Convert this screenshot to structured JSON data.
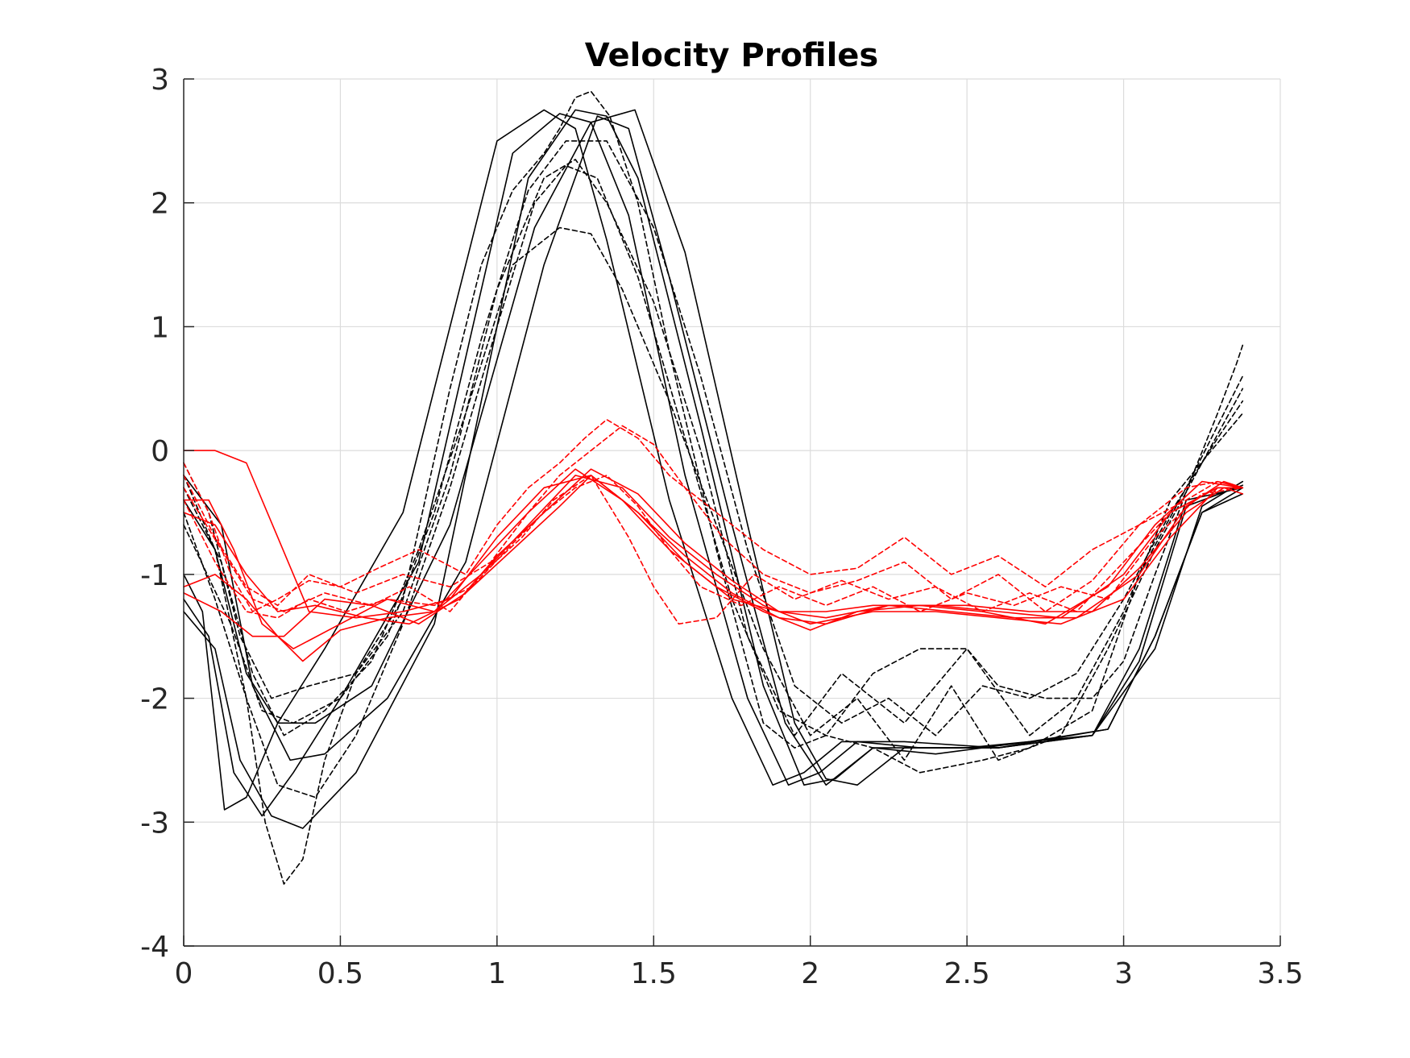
{
  "chart_data": {
    "type": "line",
    "title": "Velocity Profiles",
    "xlabel": "",
    "ylabel": "",
    "xlim": [
      0,
      3.5
    ],
    "ylim": [
      -4,
      3
    ],
    "xticks": [
      0,
      0.5,
      1,
      1.5,
      2,
      2.5,
      3,
      3.5
    ],
    "xtick_labels": [
      "0",
      "0.5",
      "1",
      "1.5",
      "2",
      "2.5",
      "3",
      "3.5"
    ],
    "yticks": [
      3,
      2,
      1,
      0,
      -1,
      -2,
      -3,
      -4
    ],
    "ytick_labels": [
      "3",
      "2",
      "1",
      "0",
      "-1",
      "-2",
      "-3",
      "-4"
    ],
    "grid": true,
    "legend": "none",
    "colors": {
      "black_series": "#000000",
      "red_series": "#ff0000",
      "grid": "#dcdcdc",
      "axis": "#262626"
    },
    "series": [
      {
        "color": "#000000",
        "style": "solid",
        "x": [
          0,
          0.06,
          0.13,
          0.2,
          0.3,
          0.45,
          0.7,
          1.0,
          1.15,
          1.25,
          1.35,
          1.55,
          1.75,
          1.88,
          1.98,
          2.1,
          2.3,
          2.6,
          2.9,
          3.05,
          3.2,
          3.38
        ],
        "y": [
          -1.0,
          -1.3,
          -2.9,
          -2.8,
          -2.2,
          -1.6,
          -0.5,
          2.5,
          2.75,
          2.6,
          1.7,
          -0.4,
          -2.0,
          -2.7,
          -2.6,
          -2.35,
          -2.35,
          -2.4,
          -2.3,
          -1.6,
          -0.4,
          -0.3
        ]
      },
      {
        "color": "#000000",
        "style": "solid",
        "x": [
          0,
          0.08,
          0.16,
          0.25,
          0.35,
          0.5,
          0.75,
          1.05,
          1.2,
          1.3,
          1.42,
          1.6,
          1.8,
          1.93,
          2.03,
          2.15,
          2.35,
          2.6,
          2.9,
          3.05,
          3.2,
          3.38
        ],
        "y": [
          -1.2,
          -1.5,
          -2.6,
          -2.95,
          -2.6,
          -2.0,
          -0.9,
          2.4,
          2.72,
          2.65,
          1.9,
          -0.2,
          -2.0,
          -2.7,
          -2.6,
          -2.35,
          -2.4,
          -2.4,
          -2.3,
          -1.7,
          -0.45,
          -0.28
        ]
      },
      {
        "color": "#000000",
        "style": "solid",
        "x": [
          0,
          0.1,
          0.18,
          0.28,
          0.38,
          0.55,
          0.8,
          1.1,
          1.25,
          1.35,
          1.45,
          1.65,
          1.85,
          1.98,
          2.08,
          2.2,
          2.4,
          2.7,
          2.95,
          3.1,
          3.25,
          3.38
        ],
        "y": [
          -1.3,
          -1.6,
          -2.5,
          -2.95,
          -3.05,
          -2.6,
          -1.4,
          2.2,
          2.75,
          2.7,
          2.2,
          0.2,
          -1.9,
          -2.7,
          -2.65,
          -2.4,
          -2.45,
          -2.35,
          -2.25,
          -1.5,
          -0.5,
          -0.3
        ]
      },
      {
        "color": "#000000",
        "style": "solid",
        "x": [
          0,
          0.1,
          0.2,
          0.3,
          0.42,
          0.6,
          0.85,
          1.12,
          1.3,
          1.44,
          1.6,
          1.8,
          1.95,
          2.05,
          2.15,
          2.3,
          2.6,
          2.95,
          3.1,
          3.25,
          3.38
        ],
        "y": [
          -0.4,
          -0.8,
          -1.8,
          -2.2,
          -2.2,
          -1.9,
          -0.6,
          1.8,
          2.65,
          2.75,
          1.6,
          -0.6,
          -2.2,
          -2.65,
          -2.7,
          -2.4,
          -2.4,
          -2.25,
          -1.5,
          -0.5,
          -0.35
        ]
      },
      {
        "color": "#000000",
        "style": "solid",
        "x": [
          0,
          0.12,
          0.22,
          0.34,
          0.45,
          0.65,
          0.9,
          1.15,
          1.32,
          1.42,
          1.55,
          1.75,
          1.92,
          2.05,
          2.2,
          2.5,
          2.9,
          3.1,
          3.25,
          3.38
        ],
        "y": [
          -0.2,
          -0.6,
          -1.9,
          -2.5,
          -2.45,
          -2.0,
          -0.9,
          1.5,
          2.7,
          2.6,
          1.4,
          -0.6,
          -2.2,
          -2.7,
          -2.4,
          -2.4,
          -2.3,
          -1.6,
          -0.45,
          -0.25
        ]
      },
      {
        "color": "#000000",
        "style": "dashed",
        "x": [
          0,
          0.1,
          0.2,
          0.26,
          0.32,
          0.38,
          0.45,
          0.55,
          0.7,
          0.85,
          0.95,
          1.05,
          1.15,
          1.2,
          1.25,
          1.3,
          1.36,
          1.45,
          1.55,
          1.7,
          1.85,
          1.95,
          2.05,
          2.2,
          2.35,
          2.5,
          2.6,
          2.75,
          2.9,
          3.0,
          3.1,
          3.22,
          3.3,
          3.36,
          3.38
        ],
        "y": [
          -0.2,
          -0.8,
          -2.0,
          -3.0,
          -3.5,
          -3.3,
          -2.5,
          -1.8,
          -1.2,
          0.5,
          1.5,
          2.1,
          2.4,
          2.6,
          2.85,
          2.9,
          2.7,
          2.0,
          0.8,
          -0.8,
          -2.2,
          -2.4,
          -2.3,
          -1.8,
          -1.6,
          -1.6,
          -1.9,
          -2.0,
          -2.0,
          -1.7,
          -1.0,
          -0.2,
          0.3,
          0.7,
          0.85
        ]
      },
      {
        "color": "#000000",
        "style": "dashed",
        "x": [
          0,
          0.08,
          0.18,
          0.28,
          0.4,
          0.55,
          0.7,
          0.85,
          1.0,
          1.15,
          1.25,
          1.35,
          1.5,
          1.65,
          1.8,
          1.95,
          2.1,
          2.3,
          2.5,
          2.7,
          2.85,
          3.0,
          3.15,
          3.28,
          3.38
        ],
        "y": [
          -0.1,
          -0.5,
          -1.5,
          -2.0,
          -1.9,
          -1.8,
          -1.3,
          -0.2,
          1.3,
          2.2,
          2.35,
          2.0,
          1.2,
          0.0,
          -1.5,
          -2.3,
          -1.8,
          -2.2,
          -1.6,
          -2.3,
          -2.0,
          -1.3,
          -0.4,
          0.0,
          0.3
        ]
      },
      {
        "color": "#000000",
        "style": "dashed",
        "x": [
          0,
          0.12,
          0.22,
          0.32,
          0.45,
          0.6,
          0.75,
          0.9,
          1.05,
          1.2,
          1.3,
          1.4,
          1.55,
          1.7,
          1.85,
          2.0,
          2.15,
          2.3,
          2.45,
          2.6,
          2.8,
          2.95,
          3.1,
          3.25,
          3.38
        ],
        "y": [
          -0.3,
          -0.9,
          -1.8,
          -2.3,
          -2.1,
          -1.7,
          -0.8,
          0.3,
          1.5,
          1.8,
          1.75,
          1.3,
          0.4,
          -0.6,
          -1.6,
          -2.3,
          -2.0,
          -2.5,
          -1.9,
          -2.5,
          -2.3,
          -1.6,
          -0.8,
          -0.1,
          0.5
        ]
      },
      {
        "color": "#000000",
        "style": "dashed",
        "x": [
          0,
          0.1,
          0.2,
          0.3,
          0.42,
          0.55,
          0.7,
          0.85,
          1.0,
          1.12,
          1.22,
          1.32,
          1.45,
          1.6,
          1.75,
          1.9,
          2.05,
          2.2,
          2.35,
          2.55,
          2.7,
          2.9,
          3.05,
          3.2,
          3.3,
          3.38
        ],
        "y": [
          -0.5,
          -1.2,
          -2.0,
          -2.7,
          -2.8,
          -2.3,
          -1.4,
          -0.3,
          1.0,
          2.0,
          2.3,
          2.2,
          1.4,
          0.1,
          -1.2,
          -2.1,
          -2.3,
          -2.4,
          -2.6,
          -2.5,
          -2.4,
          -2.1,
          -1.0,
          -0.3,
          0.2,
          0.6
        ]
      },
      {
        "color": "#000000",
        "style": "dashed",
        "x": [
          0,
          0.15,
          0.25,
          0.35,
          0.5,
          0.65,
          0.8,
          0.95,
          1.1,
          1.22,
          1.35,
          1.5,
          1.65,
          1.8,
          1.95,
          2.1,
          2.25,
          2.4,
          2.55,
          2.7,
          2.85,
          3.0,
          3.15,
          3.3,
          3.38
        ],
        "y": [
          -0.6,
          -1.4,
          -2.1,
          -2.2,
          -2.0,
          -1.5,
          -0.5,
          0.9,
          2.1,
          2.5,
          2.5,
          1.8,
          0.6,
          -0.8,
          -1.9,
          -2.2,
          -2.0,
          -2.3,
          -1.9,
          -2.0,
          -1.8,
          -1.2,
          -0.5,
          0.1,
          0.4
        ]
      },
      {
        "color": "#ff0000",
        "style": "solid",
        "x": [
          0,
          0.1,
          0.2,
          0.3,
          0.4,
          0.55,
          0.7,
          0.85,
          1.0,
          1.15,
          1.3,
          1.45,
          1.6,
          1.75,
          1.9,
          2.05,
          2.2,
          2.4,
          2.6,
          2.8,
          3.0,
          3.15,
          3.3,
          3.38
        ],
        "y": [
          0.0,
          0.0,
          -0.1,
          -0.7,
          -1.3,
          -1.35,
          -1.3,
          -1.2,
          -0.7,
          -0.3,
          -0.2,
          -0.5,
          -0.9,
          -1.2,
          -1.3,
          -1.3,
          -1.25,
          -1.25,
          -1.3,
          -1.35,
          -1.0,
          -0.5,
          -0.3,
          -0.3
        ]
      },
      {
        "color": "#ff0000",
        "style": "solid",
        "x": [
          0,
          0.08,
          0.16,
          0.25,
          0.35,
          0.5,
          0.65,
          0.8,
          0.95,
          1.1,
          1.25,
          1.4,
          1.55,
          1.7,
          1.85,
          2.0,
          2.15,
          2.35,
          2.55,
          2.75,
          2.95,
          3.1,
          3.25,
          3.38
        ],
        "y": [
          -0.4,
          -0.4,
          -0.8,
          -1.4,
          -1.6,
          -1.4,
          -1.2,
          -1.3,
          -0.9,
          -0.5,
          -0.15,
          -0.4,
          -0.8,
          -1.1,
          -1.3,
          -1.45,
          -1.3,
          -1.25,
          -1.3,
          -1.4,
          -1.1,
          -0.6,
          -0.25,
          -0.3
        ]
      },
      {
        "color": "#ff0000",
        "style": "solid",
        "x": [
          0,
          0.1,
          0.2,
          0.3,
          0.38,
          0.5,
          0.65,
          0.8,
          0.95,
          1.1,
          1.25,
          1.4,
          1.55,
          1.7,
          1.85,
          2.0,
          2.2,
          2.4,
          2.6,
          2.8,
          3.0,
          3.15,
          3.3,
          3.38
        ],
        "y": [
          -1.1,
          -1.0,
          -1.2,
          -1.5,
          -1.7,
          -1.45,
          -1.35,
          -1.3,
          -1.0,
          -0.6,
          -0.2,
          -0.3,
          -0.7,
          -1.0,
          -1.25,
          -1.4,
          -1.3,
          -1.3,
          -1.35,
          -1.4,
          -1.2,
          -0.7,
          -0.3,
          -0.3
        ]
      },
      {
        "color": "#ff0000",
        "style": "solid",
        "x": [
          0,
          0.12,
          0.22,
          0.32,
          0.45,
          0.6,
          0.75,
          0.9,
          1.05,
          1.2,
          1.3,
          1.45,
          1.6,
          1.75,
          1.9,
          2.05,
          2.25,
          2.45,
          2.65,
          2.85,
          3.05,
          3.2,
          3.32,
          3.38
        ],
        "y": [
          -1.15,
          -1.3,
          -1.5,
          -1.5,
          -1.2,
          -1.25,
          -1.4,
          -1.15,
          -0.8,
          -0.45,
          -0.2,
          -0.5,
          -0.85,
          -1.15,
          -1.35,
          -1.4,
          -1.25,
          -1.3,
          -1.35,
          -1.35,
          -1.0,
          -0.45,
          -0.25,
          -0.3
        ]
      },
      {
        "color": "#ff0000",
        "style": "solid",
        "x": [
          0,
          0.1,
          0.2,
          0.3,
          0.42,
          0.58,
          0.72,
          0.88,
          1.0,
          1.15,
          1.3,
          1.45,
          1.6,
          1.75,
          1.9,
          2.05,
          2.25,
          2.5,
          2.7,
          2.9,
          3.05,
          3.2,
          3.32,
          3.38
        ],
        "y": [
          -0.5,
          -0.6,
          -1.0,
          -1.3,
          -1.25,
          -1.35,
          -1.4,
          -1.2,
          -0.85,
          -0.5,
          -0.15,
          -0.35,
          -0.75,
          -1.05,
          -1.3,
          -1.35,
          -1.25,
          -1.25,
          -1.3,
          -1.3,
          -0.95,
          -0.5,
          -0.3,
          -0.35
        ]
      },
      {
        "color": "#ff0000",
        "style": "dashed",
        "x": [
          0,
          0.08,
          0.15,
          0.22,
          0.3,
          0.4,
          0.5,
          0.62,
          0.75,
          0.9,
          1.0,
          1.1,
          1.2,
          1.28,
          1.35,
          1.45,
          1.55,
          1.7,
          1.85,
          2.0,
          2.15,
          2.3,
          2.45,
          2.6,
          2.75,
          2.9,
          3.05,
          3.2,
          3.3,
          3.38
        ],
        "y": [
          -0.1,
          -0.5,
          -1.0,
          -1.3,
          -1.2,
          -1.05,
          -1.1,
          -0.95,
          -0.8,
          -1.0,
          -0.6,
          -0.3,
          -0.1,
          0.1,
          0.25,
          0.1,
          -0.2,
          -0.5,
          -0.8,
          -1.0,
          -0.95,
          -0.7,
          -1.0,
          -0.85,
          -1.1,
          -0.8,
          -0.6,
          -0.4,
          -0.25,
          -0.3
        ]
      },
      {
        "color": "#ff0000",
        "style": "dashed",
        "x": [
          0,
          0.1,
          0.2,
          0.3,
          0.4,
          0.55,
          0.7,
          0.85,
          0.98,
          1.1,
          1.2,
          1.3,
          1.4,
          1.5,
          1.6,
          1.72,
          1.85,
          2.0,
          2.15,
          2.3,
          2.45,
          2.6,
          2.75,
          2.9,
          3.05,
          3.2,
          3.3,
          3.38
        ],
        "y": [
          -0.2,
          -0.7,
          -1.1,
          -1.25,
          -1.0,
          -1.15,
          -1.0,
          -1.1,
          -0.9,
          -0.5,
          -0.2,
          0.0,
          0.2,
          0.05,
          -0.3,
          -0.7,
          -1.0,
          -1.15,
          -1.05,
          -0.9,
          -1.2,
          -1.0,
          -1.3,
          -1.05,
          -0.6,
          -0.3,
          -0.25,
          -0.3
        ]
      },
      {
        "color": "#ff0000",
        "style": "dashed",
        "x": [
          0,
          0.12,
          0.22,
          0.32,
          0.45,
          0.6,
          0.72,
          0.85,
          0.95,
          1.08,
          1.18,
          1.3,
          1.42,
          1.5,
          1.58,
          1.7,
          1.82,
          1.95,
          2.1,
          2.25,
          2.4,
          2.55,
          2.7,
          2.85,
          3.0,
          3.15,
          3.3,
          3.38
        ],
        "y": [
          -0.3,
          -0.8,
          -1.2,
          -1.3,
          -1.15,
          -1.25,
          -1.1,
          -1.3,
          -1.0,
          -0.7,
          -0.4,
          -0.2,
          -0.7,
          -1.1,
          -1.4,
          -1.35,
          -1.0,
          -1.2,
          -1.05,
          -1.2,
          -1.1,
          -1.3,
          -1.15,
          -1.3,
          -0.9,
          -0.5,
          -0.3,
          -0.3
        ]
      },
      {
        "color": "#ff0000",
        "style": "dashed",
        "x": [
          0,
          0.1,
          0.2,
          0.3,
          0.4,
          0.52,
          0.65,
          0.8,
          0.92,
          1.05,
          1.15,
          1.25,
          1.35,
          1.45,
          1.55,
          1.65,
          1.78,
          1.9,
          2.05,
          2.2,
          2.35,
          2.5,
          2.65,
          2.8,
          2.95,
          3.1,
          3.25,
          3.38
        ],
        "y": [
          -0.4,
          -0.9,
          -1.3,
          -1.35,
          -1.2,
          -1.3,
          -1.2,
          -1.25,
          -1.1,
          -0.75,
          -0.5,
          -0.3,
          -0.2,
          -0.45,
          -0.8,
          -1.1,
          -1.25,
          -1.1,
          -1.25,
          -1.1,
          -1.3,
          -1.15,
          -1.25,
          -1.1,
          -1.2,
          -0.7,
          -0.35,
          -0.3
        ]
      }
    ]
  }
}
